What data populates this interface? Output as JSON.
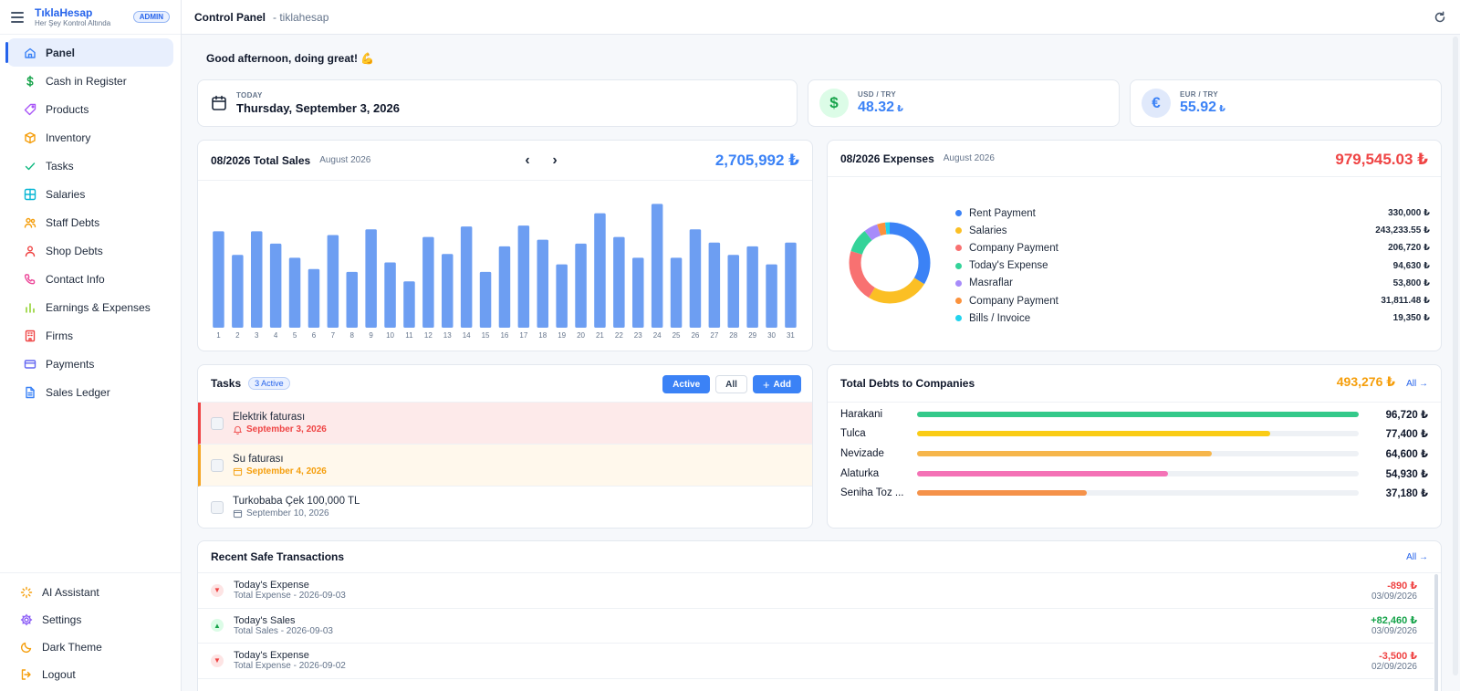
{
  "brand": {
    "name": "TıklaHesap",
    "tagline": "Her Şey Kontrol Altında",
    "badge": "ADMIN"
  },
  "sidebar": {
    "items": [
      {
        "label": "Panel",
        "icon": "home-icon",
        "color": "#3b82f6",
        "active": true
      },
      {
        "label": "Cash in Register",
        "icon": "dollar-icon",
        "color": "#16a34a"
      },
      {
        "label": "Products",
        "icon": "tag-icon",
        "color": "#a855f7"
      },
      {
        "label": "Inventory",
        "icon": "box-icon",
        "color": "#f59e0b"
      },
      {
        "label": "Tasks",
        "icon": "check-icon",
        "color": "#10b981"
      },
      {
        "label": "Salaries",
        "icon": "grid-icon",
        "color": "#06b6d4"
      },
      {
        "label": "Staff Debts",
        "icon": "users-icon",
        "color": "#f59e0b"
      },
      {
        "label": "Shop Debts",
        "icon": "user-icon",
        "color": "#ef4444"
      },
      {
        "label": "Contact Info",
        "icon": "phone-icon",
        "color": "#ec4899"
      },
      {
        "label": "Earnings & Expenses",
        "icon": "bar-chart-icon",
        "color": "#84cc16"
      },
      {
        "label": "Firms",
        "icon": "building-icon",
        "color": "#ef4444"
      },
      {
        "label": "Payments",
        "icon": "credit-card-icon",
        "color": "#6366f1"
      },
      {
        "label": "Sales Ledger",
        "icon": "document-icon",
        "color": "#3b82f6"
      }
    ],
    "bottom": [
      {
        "label": "AI Assistant",
        "icon": "sparkle-icon",
        "color": "#f59e0b"
      },
      {
        "label": "Settings",
        "icon": "gear-icon",
        "color": "#8b5cf6"
      },
      {
        "label": "Dark Theme",
        "icon": "moon-icon",
        "color": "#f59e0b"
      },
      {
        "label": "Logout",
        "icon": "logout-icon",
        "color": "#f59e0b"
      }
    ]
  },
  "topbar": {
    "title": "Control Panel",
    "subtitle": "- tiklahesap"
  },
  "greeting": "Good afternoon, doing great! 💪",
  "today": {
    "label": "TODAY",
    "value": "Thursday, September 3, 2026"
  },
  "rates": [
    {
      "label": "USD / TRY",
      "value": "48.32",
      "unit": "₺",
      "symbol": "$",
      "bg": "#dcfce7",
      "fg": "#16a34a"
    },
    {
      "label": "EUR / TRY",
      "value": "55.92",
      "unit": "₺",
      "symbol": "€",
      "bg": "#e0e9fb",
      "fg": "#3b82f6"
    }
  ],
  "sales": {
    "title": "08/2026 Total Sales",
    "subtitle": "August 2026",
    "prev": "‹",
    "next": "›",
    "total": "2,705,992 ₺"
  },
  "chart_data": {
    "type": "bar",
    "title": "08/2026 Total Sales",
    "categories": [
      "1",
      "2",
      "3",
      "4",
      "5",
      "6",
      "7",
      "8",
      "9",
      "10",
      "11",
      "12",
      "13",
      "14",
      "15",
      "16",
      "17",
      "18",
      "19",
      "20",
      "21",
      "22",
      "23",
      "24",
      "25",
      "26",
      "27",
      "28",
      "29",
      "30",
      "31"
    ],
    "values": [
      102,
      77,
      102,
      89,
      74,
      62,
      98,
      59,
      104,
      69,
      49,
      96,
      78,
      107,
      59,
      86,
      108,
      93,
      67,
      89,
      121,
      96,
      74,
      131,
      74,
      104,
      90,
      77,
      86,
      67,
      90
    ],
    "color": "#6d9ef2"
  },
  "expenses": {
    "title": "08/2026 Expenses",
    "subtitle": "August 2026",
    "total": "979,545.03 ₺",
    "items": [
      {
        "name": "Rent Payment",
        "value": "330,000 ₺",
        "amount": 330000,
        "color": "#3b82f6"
      },
      {
        "name": "Salaries",
        "value": "243,233.55 ₺",
        "amount": 243233.55,
        "color": "#fbbf24"
      },
      {
        "name": "Company Payment",
        "value": "206,720 ₺",
        "amount": 206720,
        "color": "#f87171"
      },
      {
        "name": "Today's Expense",
        "value": "94,630 ₺",
        "amount": 94630,
        "color": "#34d399"
      },
      {
        "name": "Masraflar",
        "value": "53,800 ₺",
        "amount": 53800,
        "color": "#a78bfa"
      },
      {
        "name": "Company Payment",
        "value": "31,811.48 ₺",
        "amount": 31811.48,
        "color": "#fb923c"
      },
      {
        "name": "Bills / Invoice",
        "value": "19,350 ₺",
        "amount": 19350,
        "color": "#22d3ee"
      }
    ]
  },
  "tasks": {
    "title": "Tasks",
    "badge": "3 Active",
    "btn_active": "Active",
    "btn_all": "All",
    "btn_add": "Add",
    "items": [
      {
        "title": "Elektrik faturası",
        "date": "September 3, 2026",
        "state": "red"
      },
      {
        "title": "Su faturası",
        "date": "September 4, 2026",
        "state": "amber"
      },
      {
        "title": "Turkobaba Çek 100,000 TL",
        "date": "September 10, 2026",
        "state": "normal"
      }
    ]
  },
  "debts": {
    "title": "Total Debts to Companies",
    "total": "493,276 ₺",
    "all": "All →",
    "items": [
      {
        "name": "Harakani",
        "value": "96,720 ₺",
        "fraction": 1.0,
        "color": "#34c98a"
      },
      {
        "name": "Tulca",
        "value": "77,400 ₺",
        "fraction": 0.8,
        "color": "#facc15"
      },
      {
        "name": "Nevizade",
        "value": "64,600 ₺",
        "fraction": 0.668,
        "color": "#f6b64b"
      },
      {
        "name": "Alaturka",
        "value": "54,930 ₺",
        "fraction": 0.568,
        "color": "#f472b6"
      },
      {
        "name": "Seniha Toz ...",
        "value": "37,180 ₺",
        "fraction": 0.384,
        "color": "#f5924a"
      }
    ]
  },
  "recent": {
    "title": "Recent Safe Transactions",
    "all": "All →",
    "items": [
      {
        "title": "Today's Expense",
        "sub": "Total Expense - 2026-09-03",
        "amount": "-890 ₺",
        "date": "03/09/2026",
        "dir": "down"
      },
      {
        "title": "Today's Sales",
        "sub": "Total Sales - 2026-09-03",
        "amount": "+82,460 ₺",
        "date": "03/09/2026",
        "dir": "up"
      },
      {
        "title": "Today's Expense",
        "sub": "Total Expense - 2026-09-02",
        "amount": "-3,500 ₺",
        "date": "02/09/2026",
        "dir": "down"
      }
    ]
  }
}
